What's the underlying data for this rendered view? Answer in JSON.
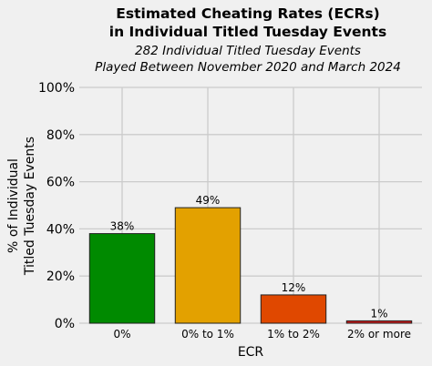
{
  "chart_data": {
    "type": "bar",
    "title": [
      "Estimated Cheating Rates (ECRs)",
      "in Individual Titled Tuesday Events"
    ],
    "subtitle": [
      "282 Individual Titled Tuesday Events",
      "Played Between November 2020 and March 2024"
    ],
    "xlabel": "ECR",
    "ylabel": [
      "% of Individual",
      "Titled Tuesday Events"
    ],
    "categories": [
      "0%",
      "0% to 1%",
      "1% to 2%",
      "2% or more"
    ],
    "values": [
      38,
      49,
      12,
      1
    ],
    "data_labels": [
      "38%",
      "49%",
      "12%",
      "1%"
    ],
    "colors": [
      "#008a00",
      "#e3a100",
      "#e04800",
      "#cc1a1a"
    ],
    "ylim": [
      0,
      100
    ],
    "yticks": [
      0,
      20,
      40,
      60,
      80,
      100
    ],
    "ytick_labels": [
      "0%",
      "20%",
      "40%",
      "60%",
      "80%",
      "100%"
    ],
    "grid": true,
    "legend": "none"
  }
}
